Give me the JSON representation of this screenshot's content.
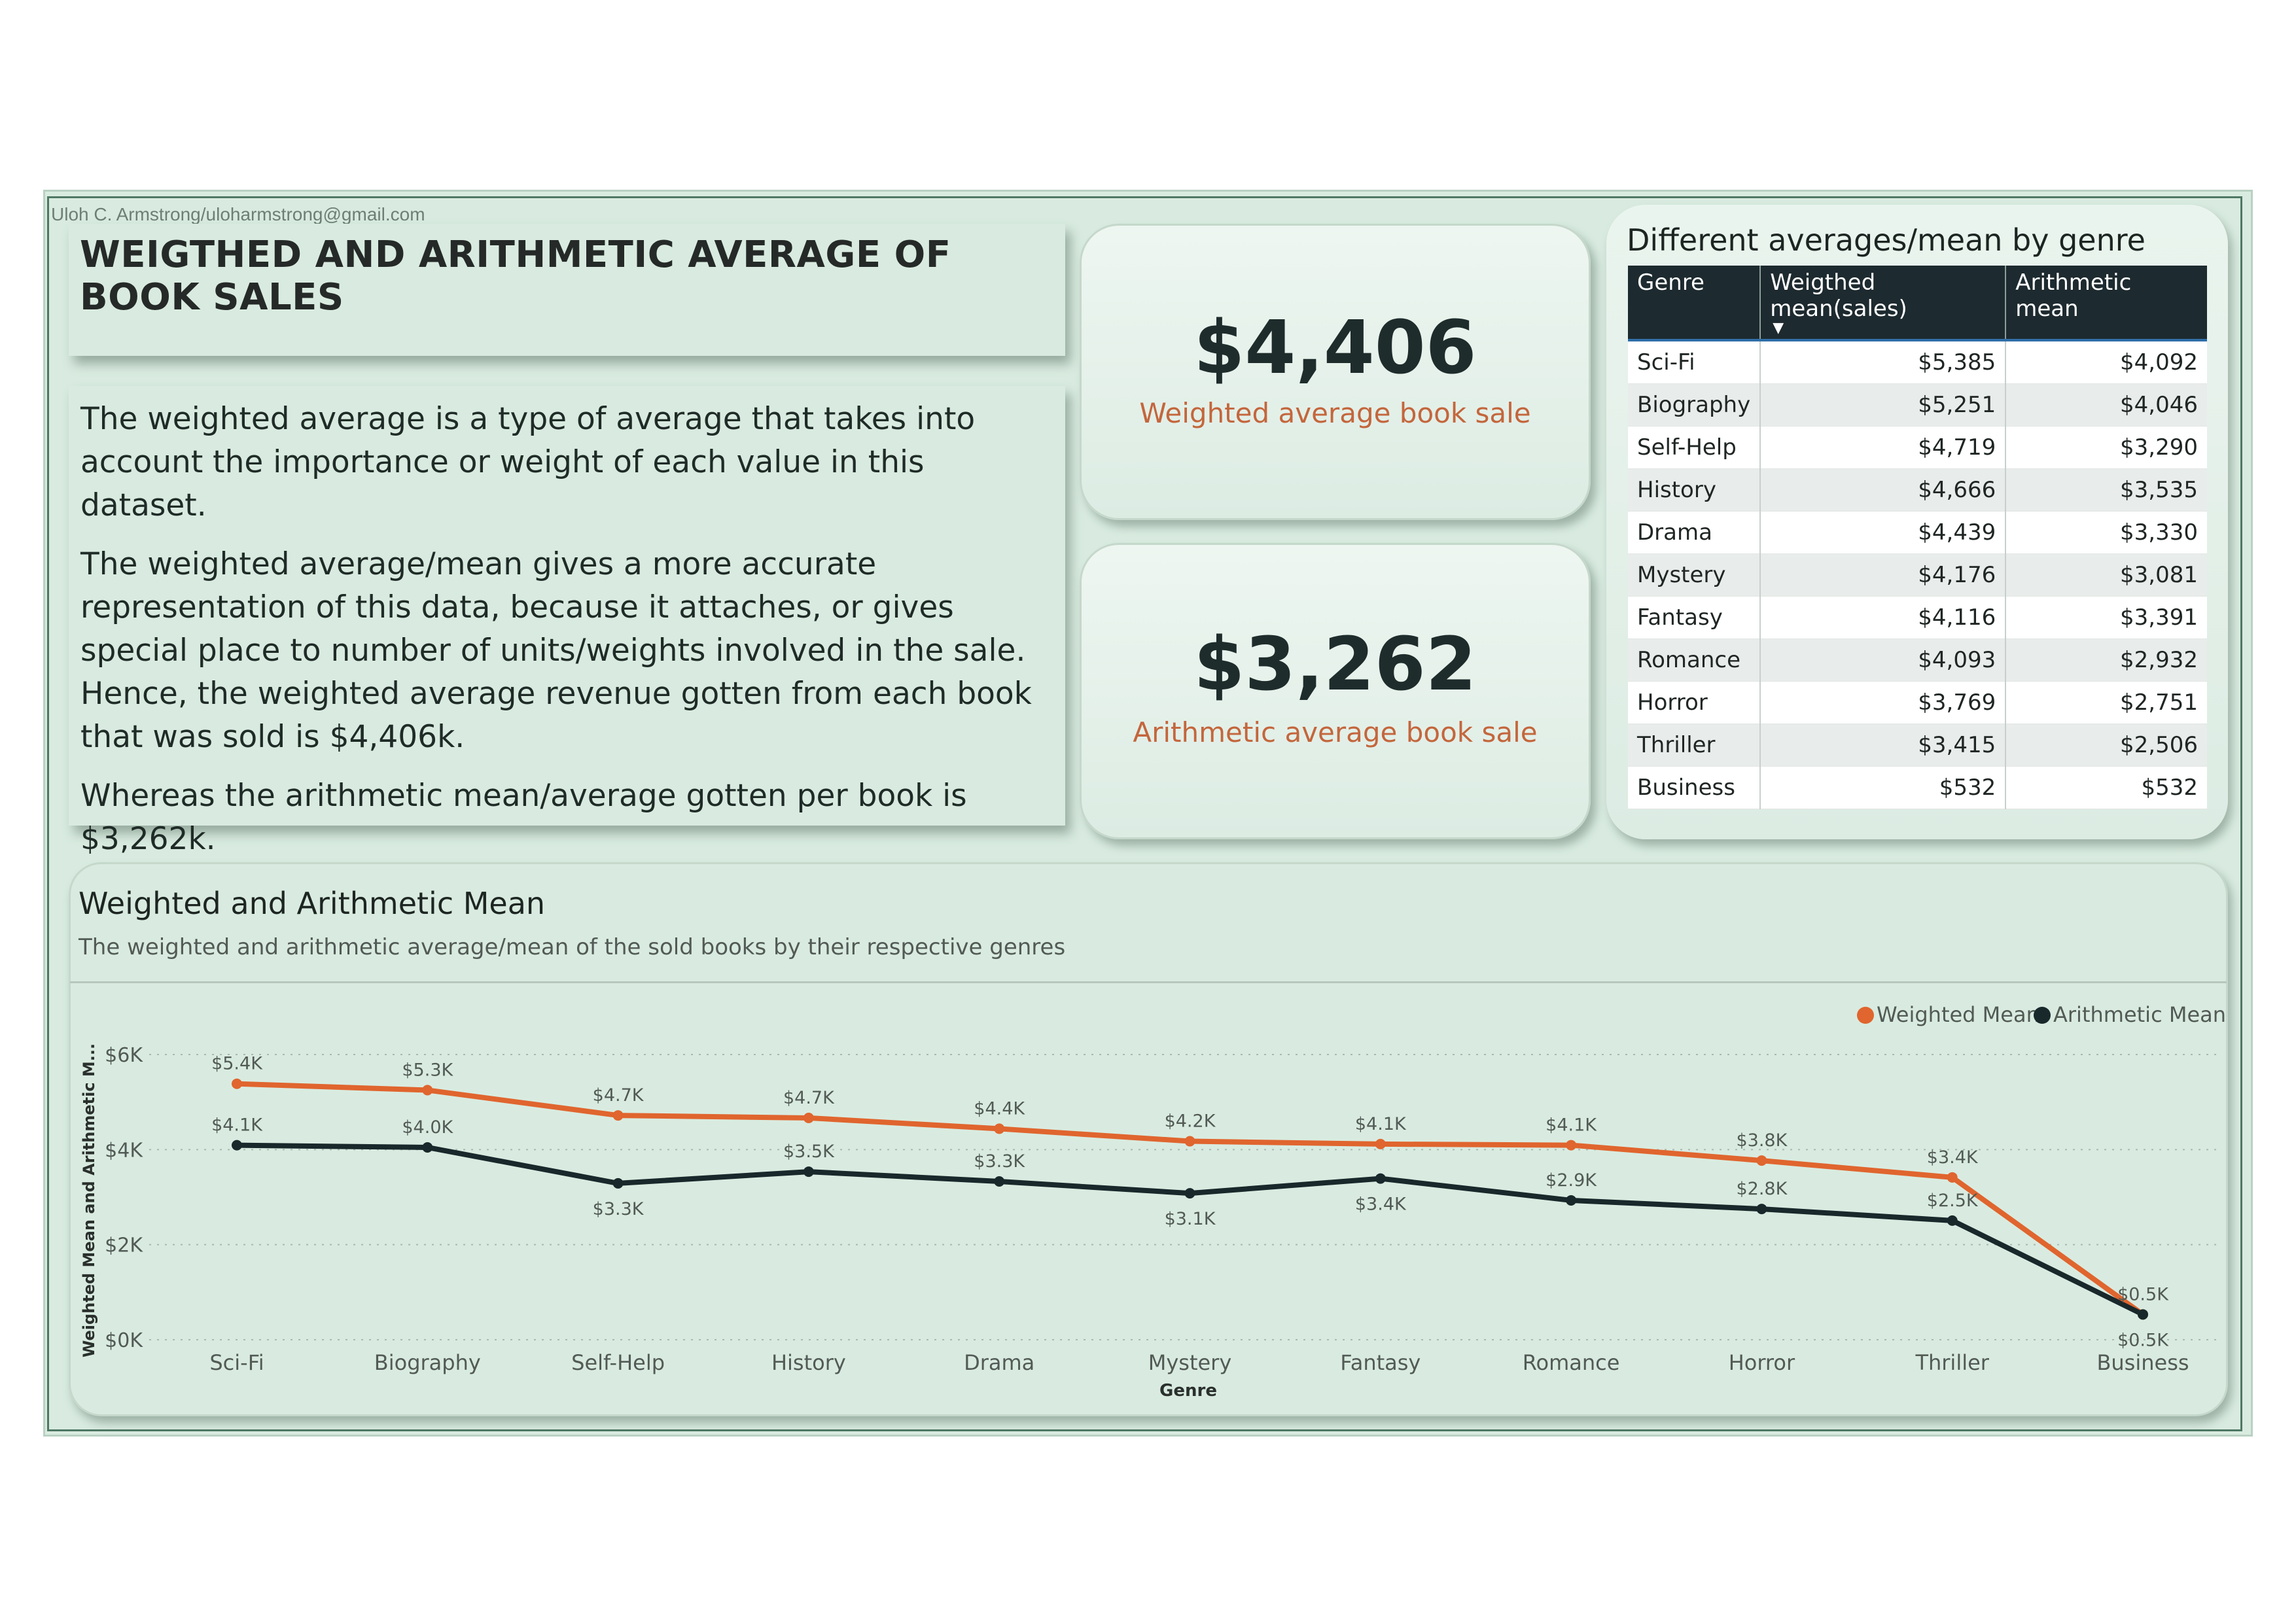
{
  "author": "Uloh C. Armstrong/uloharmstrong@gmail.com",
  "title": "WEIGTHED AND ARITHMETIC AVERAGE OF BOOK SALES",
  "description": {
    "p1": "The weighted average is a type of average that takes into account the importance or weight of each value in this dataset.",
    "p2": "The weighted average/mean gives a more accurate representation of this data, because it attaches, or gives special place to number of units/weights involved in the sale. Hence, the weighted average revenue gotten from each book that was sold is $4,406k.",
    "p3": "Whereas the arithmetic mean/average gotten per book is $3,262k."
  },
  "kpis": {
    "weighted": {
      "value": "$4,406",
      "label": "Weighted average book sale"
    },
    "arithmetic": {
      "value": "$3,262",
      "label": "Arithmetic average book sale"
    }
  },
  "table": {
    "title": "Different averages/mean by genre",
    "headers": [
      "Genre",
      "Weigthed mean(sales)",
      "Arithmetic mean"
    ],
    "rows": [
      [
        "Sci-Fi",
        "$5,385",
        "$4,092"
      ],
      [
        "Biography",
        "$5,251",
        "$4,046"
      ],
      [
        "Self-Help",
        "$4,719",
        "$3,290"
      ],
      [
        "History",
        "$4,666",
        "$3,535"
      ],
      [
        "Drama",
        "$4,439",
        "$3,330"
      ],
      [
        "Mystery",
        "$4,176",
        "$3,081"
      ],
      [
        "Fantasy",
        "$4,116",
        "$3,391"
      ],
      [
        "Romance",
        "$4,093",
        "$2,932"
      ],
      [
        "Horror",
        "$3,769",
        "$2,751"
      ],
      [
        "Thriller",
        "$3,415",
        "$2,506"
      ],
      [
        "Business",
        "$532",
        "$532"
      ]
    ]
  },
  "colors": {
    "weighted": "#e0652e",
    "arithmetic": "#18282b",
    "kpi_label": "#c4663c"
  },
  "chart_data": {
    "type": "line",
    "title": "Weighted and Arithmetic Mean",
    "subtitle": "The weighted and arithmetic average/mean of the sold books by their respective genres",
    "xlabel": "Genre",
    "ylabel": "Weighted Mean and Arithmetic M...",
    "categories": [
      "Sci-Fi",
      "Biography",
      "Self-Help",
      "History",
      "Drama",
      "Mystery",
      "Fantasy",
      "Romance",
      "Horror",
      "Thriller",
      "Business"
    ],
    "series": [
      {
        "name": "Weighted Mean",
        "values": [
          5385,
          5251,
          4719,
          4666,
          4439,
          4176,
          4116,
          4093,
          3769,
          3415,
          532
        ],
        "labels": [
          "$5.4K",
          "$5.3K",
          "$4.7K",
          "$4.7K",
          "$4.4K",
          "$4.2K",
          "$4.1K",
          "$4.1K",
          "$3.8K",
          "$3.4K",
          "$0.5K"
        ]
      },
      {
        "name": "Arithmetic Mean",
        "values": [
          4092,
          4046,
          3290,
          3535,
          3330,
          3081,
          3391,
          2932,
          2751,
          2506,
          532
        ],
        "labels": [
          "$4.1K",
          "$4.0K",
          "$3.3K",
          "$3.5K",
          "$3.3K",
          "$3.1K",
          "$3.4K",
          "$2.9K",
          "$2.8K",
          "$2.5K",
          "$0.5K"
        ]
      }
    ],
    "yticks": [
      "$0K",
      "$2K",
      "$4K",
      "$6K"
    ],
    "ytick_values": [
      0,
      2000,
      4000,
      6000
    ],
    "ylim": [
      0,
      6000
    ],
    "grid": true,
    "legend": "top-right"
  }
}
